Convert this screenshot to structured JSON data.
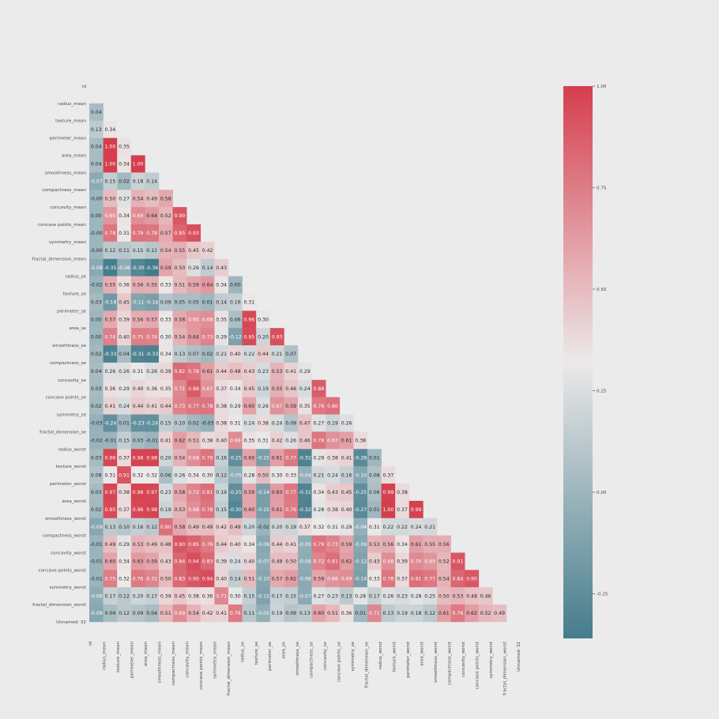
{
  "chart_data": {
    "type": "heatmap",
    "x_labels": [
      "id",
      "radius_mean",
      "texture_mean",
      "perimeter_mean",
      "area_mean",
      "smoothness_mean",
      "compactness_mean",
      "concavity_mean",
      "concave points_mean",
      "symmetry_mean",
      "fractal_dimension_mean",
      "radius_se",
      "texture_se",
      "perimeter_se",
      "area_se",
      "smoothness_se",
      "compactness_se",
      "concavity_se",
      "concave points_se",
      "symmetry_se",
      "fractal_dimension_se",
      "radius_worst",
      "texture_worst",
      "perimeter_worst",
      "area_worst",
      "smoothness_worst",
      "compactness_worst",
      "concavity_worst",
      "concave points_worst",
      "symmetry_worst",
      "fractal_dimension_worst",
      "Unnamed: 32"
    ],
    "y_labels": [
      "id",
      "radius_mean",
      "texture_mean",
      "perimeter_mean",
      "area_mean",
      "smoothness_mean",
      "compactness_mean",
      "concavity_mean",
      "concave points_mean",
      "symmetry_mean",
      "fractal_dimension_mean",
      "radius_se",
      "texture_se",
      "perimeter_se",
      "area_se",
      "smoothness_se",
      "compactness_se",
      "concavity_se",
      "concave points_se",
      "symmetry_se",
      "fractal_dimension_se",
      "radius_worst",
      "texture_worst",
      "perimeter_worst",
      "area_worst",
      "smoothness_worst",
      "compactness_worst",
      "concavity_worst",
      "concave points_worst",
      "symmetry_worst",
      "fractal_dimension_worst",
      "Unnamed: 32"
    ],
    "mask": "upper-triangle",
    "annotated": true,
    "values": [
      [],
      [
        0.04
      ],
      [
        0.13,
        0.34
      ],
      [
        0.04,
        1.0,
        0.35
      ],
      [
        0.04,
        1.0,
        0.34,
        1.0
      ],
      [
        -0.07,
        0.15,
        0.02,
        0.18,
        0.14
      ],
      [
        -0.0,
        0.5,
        0.27,
        0.54,
        0.49,
        0.58
      ],
      [
        0.0,
        0.65,
        0.34,
        0.69,
        0.64,
        0.52,
        0.9
      ],
      [
        -0.0,
        0.78,
        0.31,
        0.79,
        0.78,
        0.57,
        0.85,
        0.93
      ],
      [
        -0.0,
        0.12,
        0.11,
        0.15,
        0.11,
        0.54,
        0.55,
        0.45,
        0.42
      ],
      [
        -0.08,
        -0.35,
        -0.06,
        -0.3,
        -0.36,
        0.59,
        0.5,
        0.26,
        0.14,
        0.43
      ],
      [
        -0.02,
        0.55,
        0.36,
        0.56,
        0.55,
        0.33,
        0.51,
        0.58,
        0.64,
        0.34,
        0.0
      ],
      [
        0.03,
        -0.18,
        0.45,
        -0.11,
        -0.14,
        0.09,
        0.05,
        0.05,
        0.01,
        0.14,
        0.16,
        0.31
      ],
      [
        0.0,
        0.57,
        0.39,
        0.56,
        0.57,
        0.33,
        0.58,
        0.65,
        0.68,
        0.35,
        0.06,
        0.96,
        0.3
      ],
      [
        0.0,
        0.74,
        0.4,
        0.75,
        0.74,
        0.3,
        0.54,
        0.64,
        0.73,
        0.29,
        -0.12,
        0.95,
        0.2,
        0.93
      ],
      [
        0.02,
        -0.33,
        0.04,
        -0.31,
        -0.33,
        0.34,
        0.13,
        0.07,
        0.02,
        0.21,
        0.4,
        0.22,
        0.44,
        0.21,
        0.07
      ],
      [
        0.04,
        0.26,
        0.26,
        0.31,
        0.26,
        0.39,
        0.82,
        0.78,
        0.61,
        0.44,
        0.48,
        0.43,
        0.23,
        0.53,
        0.41,
        0.29
      ],
      [
        0.03,
        0.36,
        0.29,
        0.4,
        0.36,
        0.35,
        0.71,
        0.88,
        0.67,
        0.37,
        0.34,
        0.45,
        0.19,
        0.55,
        0.46,
        0.24,
        0.88
      ],
      [
        0.02,
        0.41,
        0.24,
        0.44,
        0.41,
        0.44,
        0.73,
        0.77,
        0.78,
        0.38,
        0.29,
        0.6,
        0.26,
        0.67,
        0.59,
        0.35,
        0.76,
        0.8
      ],
      [
        -0.03,
        -0.24,
        0.01,
        -0.23,
        -0.24,
        0.15,
        0.1,
        0.02,
        -0.03,
        0.38,
        0.31,
        0.24,
        0.38,
        0.24,
        0.09,
        0.47,
        0.27,
        0.19,
        0.26
      ],
      [
        -0.02,
        -0.01,
        0.15,
        0.03,
        -0.01,
        0.41,
        0.62,
        0.51,
        0.38,
        0.4,
        0.69,
        0.35,
        0.31,
        0.42,
        0.26,
        0.46,
        0.78,
        0.67,
        0.61,
        0.38
      ],
      [
        0.03,
        0.96,
        0.37,
        0.98,
        0.98,
        0.2,
        0.54,
        0.68,
        0.79,
        0.16,
        -0.25,
        0.6,
        -0.15,
        0.61,
        0.77,
        -0.32,
        0.29,
        0.38,
        0.41,
        -0.28,
        0.01
      ],
      [
        0.08,
        0.31,
        0.91,
        0.32,
        0.32,
        0.06,
        0.26,
        0.34,
        0.3,
        0.12,
        -0.05,
        0.28,
        0.5,
        0.3,
        0.33,
        -0.04,
        0.21,
        0.24,
        0.16,
        -0.1,
        0.08,
        0.37
      ],
      [
        0.03,
        0.97,
        0.38,
        0.98,
        0.97,
        0.23,
        0.58,
        0.72,
        0.81,
        0.19,
        -0.25,
        0.59,
        -0.14,
        0.63,
        0.77,
        -0.31,
        0.34,
        0.43,
        0.45,
        -0.25,
        0.06,
        0.99,
        0.38
      ],
      [
        0.02,
        0.95,
        0.37,
        0.96,
        0.98,
        0.19,
        0.53,
        0.68,
        0.78,
        0.15,
        -0.3,
        0.6,
        -0.15,
        0.61,
        0.76,
        -0.32,
        0.28,
        0.38,
        0.4,
        -0.27,
        0.01,
        1.0,
        0.37,
        0.99
      ],
      [
        -0.09,
        0.13,
        0.1,
        0.16,
        0.12,
        0.8,
        0.58,
        0.49,
        0.49,
        0.42,
        0.49,
        0.2,
        -0.02,
        0.2,
        0.19,
        0.37,
        0.32,
        0.31,
        0.29,
        -0.04,
        0.31,
        0.22,
        0.22,
        0.24,
        0.21
      ],
      [
        -0.01,
        0.49,
        0.29,
        0.53,
        0.49,
        0.48,
        0.9,
        0.85,
        0.76,
        0.44,
        0.4,
        0.34,
        -0.09,
        0.44,
        0.41,
        -0.05,
        0.79,
        0.73,
        0.59,
        -0.09,
        0.53,
        0.56,
        0.34,
        0.61,
        0.55,
        0.56
      ],
      [
        -0.01,
        0.6,
        0.34,
        0.63,
        0.59,
        0.43,
        0.84,
        0.94,
        0.83,
        0.39,
        0.24,
        0.4,
        -0.07,
        0.49,
        0.5,
        -0.06,
        0.72,
        0.81,
        0.62,
        -0.12,
        0.43,
        0.68,
        0.39,
        0.7,
        0.65,
        0.52,
        0.91
      ],
      [
        -0.01,
        0.75,
        0.32,
        0.76,
        0.72,
        0.5,
        0.83,
        0.9,
        0.94,
        0.4,
        0.14,
        0.51,
        -0.1,
        0.57,
        0.62,
        -0.08,
        0.59,
        0.66,
        0.69,
        -0.14,
        0.33,
        0.78,
        0.37,
        0.81,
        0.77,
        0.54,
        0.84,
        0.9
      ],
      [
        -0.06,
        0.17,
        0.12,
        0.2,
        0.17,
        0.39,
        0.45,
        0.38,
        0.36,
        0.71,
        0.3,
        0.15,
        -0.12,
        0.17,
        0.15,
        -0.07,
        0.27,
        0.23,
        0.13,
        0.28,
        0.17,
        0.26,
        0.23,
        0.28,
        0.25,
        0.5,
        0.53,
        0.48,
        0.46
      ],
      [
        -0.09,
        0.04,
        0.12,
        0.09,
        0.04,
        0.51,
        0.69,
        0.54,
        0.42,
        0.41,
        0.76,
        0.11,
        -0.05,
        0.19,
        0.09,
        0.13,
        0.6,
        0.51,
        0.36,
        0.01,
        0.71,
        0.13,
        0.19,
        0.18,
        0.12,
        0.61,
        0.76,
        0.62,
        0.52,
        0.49
      ],
      []
    ],
    "colorbar": {
      "vmin": -0.36,
      "vmax": 1.0,
      "ticks": [
        1.0,
        0.75,
        0.5,
        0.25,
        0.0,
        -0.25
      ],
      "tick_labels": [
        "1.00",
        "0.75",
        "0.50",
        "0.25",
        "0.00",
        "-0.25"
      ],
      "colors": {
        "low": "#457c8c",
        "mid": "#ece9e9",
        "high": "#d53e4d"
      }
    }
  }
}
